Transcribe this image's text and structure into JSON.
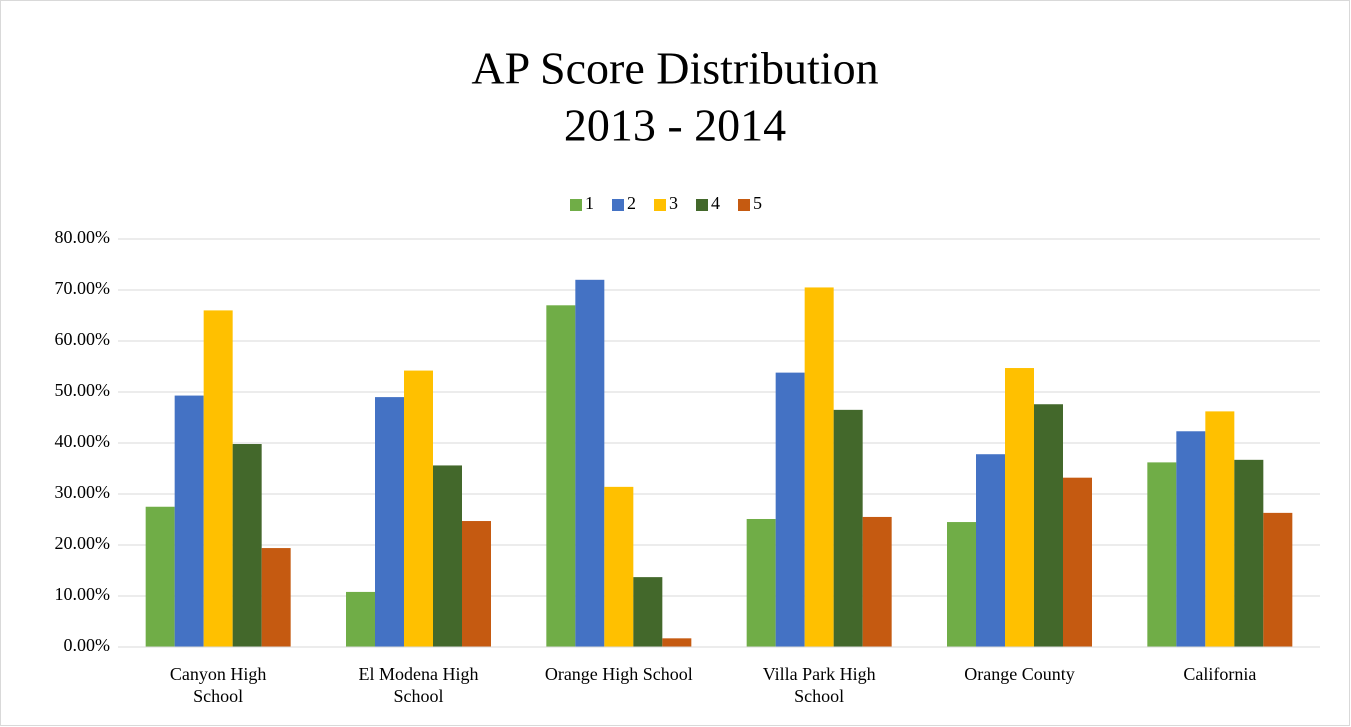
{
  "chart_data": {
    "type": "bar",
    "title": [
      "AP Score Distribution",
      "2013 - 2014"
    ],
    "categories": [
      "Canyon High\nSchool",
      "El Modena High\nSchool",
      "Orange High School",
      "Villa Park High\nSchool",
      "Orange County",
      "California"
    ],
    "series": [
      {
        "name": "1",
        "color": "#70ad47",
        "values": [
          27.5,
          10.8,
          67.0,
          25.1,
          24.5,
          36.2
        ]
      },
      {
        "name": "2",
        "color": "#4472c4",
        "values": [
          49.3,
          49.0,
          72.0,
          53.8,
          37.8,
          42.3
        ]
      },
      {
        "name": "3",
        "color": "#ffc000",
        "values": [
          66.0,
          54.2,
          31.4,
          70.5,
          54.7,
          46.2
        ]
      },
      {
        "name": "4",
        "color": "#43682b",
        "values": [
          39.8,
          35.6,
          13.7,
          46.5,
          47.6,
          36.7
        ]
      },
      {
        "name": "5",
        "color": "#c55a11",
        "values": [
          19.4,
          24.7,
          1.7,
          25.5,
          33.2,
          26.3
        ]
      }
    ],
    "ylim": [
      0,
      80
    ],
    "yticks": [
      {
        "value": 0,
        "label": "0.00%"
      },
      {
        "value": 10,
        "label": "10.00%"
      },
      {
        "value": 20,
        "label": "20.00%"
      },
      {
        "value": 30,
        "label": "30.00%"
      },
      {
        "value": 40,
        "label": "40.00%"
      },
      {
        "value": 50,
        "label": "50.00%"
      },
      {
        "value": 60,
        "label": "60.00%"
      },
      {
        "value": 70,
        "label": "70.00%"
      },
      {
        "value": 80,
        "label": "80.00%"
      }
    ],
    "grid": true,
    "legend": "top"
  }
}
